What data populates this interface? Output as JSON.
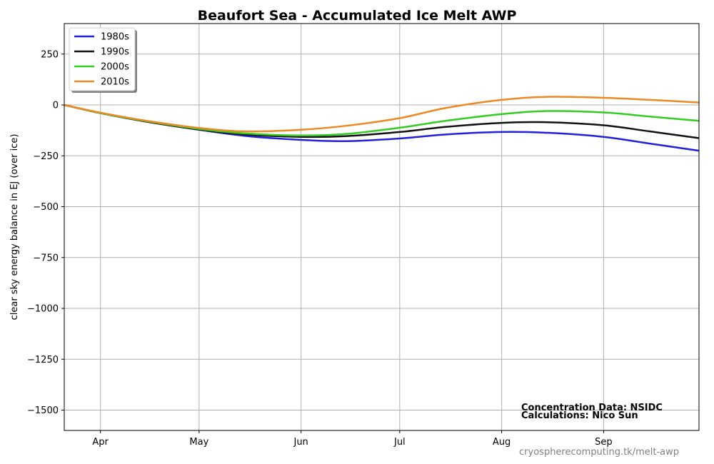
{
  "chart_data": {
    "type": "line",
    "title": "Beaufort Sea - Accumulated Ice Melt AWP",
    "xlabel": "",
    "ylabel": "clear sky energy balance in  EJ (over ice)",
    "x_ticks": [
      "Apr",
      "May",
      "Jun",
      "Jul",
      "Aug",
      "Sep"
    ],
    "x_tick_dates": [
      "04-01",
      "05-01",
      "06-01",
      "07-01",
      "08-01",
      "09-01"
    ],
    "xlim": [
      "03-21",
      "09-30"
    ],
    "ylim": [
      -1600,
      400
    ],
    "y_ticks": [
      250,
      0,
      -250,
      -500,
      -750,
      -1000,
      -1250,
      -1500
    ],
    "y_tick_labels": [
      "250",
      "0",
      "−250",
      "−500",
      "−750",
      "−1000",
      "−1250",
      "−1500"
    ],
    "grid": true,
    "legend_position": "top-left",
    "x": [
      "03-21",
      "04-01",
      "04-15",
      "05-01",
      "05-15",
      "06-01",
      "06-15",
      "07-01",
      "07-15",
      "08-01",
      "08-15",
      "09-01",
      "09-15",
      "09-30"
    ],
    "series": [
      {
        "name": "1980s",
        "color": "#2020dd",
        "values": [
          0,
          -40,
          -82,
          -122,
          -152,
          -172,
          -178,
          -165,
          -145,
          -133,
          -137,
          -157,
          -190,
          -225
        ]
      },
      {
        "name": "1990s",
        "color": "#111111",
        "values": [
          0,
          -40,
          -82,
          -121,
          -145,
          -157,
          -153,
          -133,
          -108,
          -88,
          -85,
          -100,
          -130,
          -163
        ]
      },
      {
        "name": "2000s",
        "color": "#33cc22",
        "values": [
          0,
          -40,
          -80,
          -118,
          -140,
          -150,
          -142,
          -112,
          -78,
          -45,
          -30,
          -37,
          -57,
          -78
        ]
      },
      {
        "name": "2010s",
        "color": "#ee8822",
        "values": [
          0,
          -38,
          -78,
          -113,
          -130,
          -122,
          -102,
          -65,
          -15,
          25,
          40,
          35,
          25,
          12
        ]
      }
    ],
    "annotations": [
      "Concentration Data: NSIDC",
      "Calculations: Nico Sun"
    ],
    "source": "cryospherecomputing.tk/melt-awp"
  }
}
